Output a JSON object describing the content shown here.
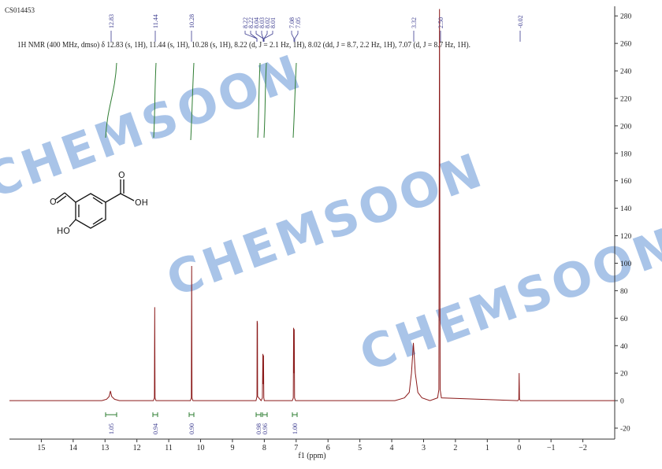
{
  "chart_data": {
    "type": "line",
    "sample_id": "CS014453",
    "annotation": "1H NMR (400 MHz, dmso) δ 12.83 (s, 1H), 11.44 (s, 1H), 10.28 (s, 1H), 8.22 (d, J = 2.1 Hz, 1H), 8.02 (dd, J = 8.7, 2.2 Hz, 1H), 7.07 (d, J = 8.7 Hz, 1H).",
    "x_label": "f1 (ppm)",
    "watermark": "CHEMSOON",
    "structure_labels": [
      "O",
      "O",
      "OH",
      "HO"
    ],
    "peak_labels": [
      "12.83",
      "11.44",
      "10.28",
      "8.22",
      "8.22",
      "8.04",
      "8.03",
      "8.02",
      "8.01",
      "7.08",
      "7.05",
      "3.32",
      "2.50",
      "-0.02"
    ],
    "integrals": [
      "1.05",
      "0.94",
      "0.90",
      "0.98",
      "0.96",
      "1.00"
    ],
    "color": "#8b1a1a",
    "x": [
      16,
      13.1,
      12.95,
      12.87,
      12.83,
      12.79,
      12.7,
      12.55,
      11.48,
      11.45,
      11.44,
      11.43,
      11.4,
      10.32,
      10.29,
      10.28,
      10.27,
      10.24,
      8.26,
      8.23,
      8.225,
      8.215,
      8.21,
      8.1,
      8.06,
      8.045,
      8.035,
      8.025,
      8.015,
      8.0,
      7.12,
      7.09,
      7.08,
      7.075,
      7.06,
      7.05,
      7.02,
      3.9,
      3.6,
      3.45,
      3.38,
      3.32,
      3.26,
      3.18,
      3.05,
      2.8,
      2.56,
      2.52,
      2.5,
      2.48,
      2.44,
      0.04,
      0.01,
      0.0,
      -0.01,
      -0.04,
      -3
    ],
    "values": [
      0,
      0,
      1,
      3,
      7,
      3,
      1,
      0,
      0,
      2,
      68,
      2,
      0,
      0,
      2,
      98,
      2,
      0,
      0,
      3,
      58,
      56,
      3,
      0,
      2,
      34,
      12,
      33,
      2,
      0,
      0,
      2,
      53,
      20,
      52,
      2,
      0,
      0,
      2,
      6,
      20,
      42,
      20,
      6,
      2,
      0,
      2,
      8,
      285,
      8,
      2,
      0,
      1,
      20,
      1,
      0,
      0
    ],
    "xlim": [
      16,
      -3
    ],
    "ylim": [
      -28,
      287
    ],
    "xticks": [
      15,
      14,
      13,
      12,
      11,
      10,
      9,
      8,
      7,
      6,
      5,
      4,
      3,
      2,
      1,
      0,
      {
        "value": -1,
        "label": "−1"
      },
      {
        "value": -2,
        "label": "−2"
      }
    ],
    "yticks": [
      -20,
      0,
      20,
      40,
      60,
      80,
      100,
      120,
      140,
      160,
      180,
      200,
      220,
      240,
      260,
      280
    ]
  }
}
